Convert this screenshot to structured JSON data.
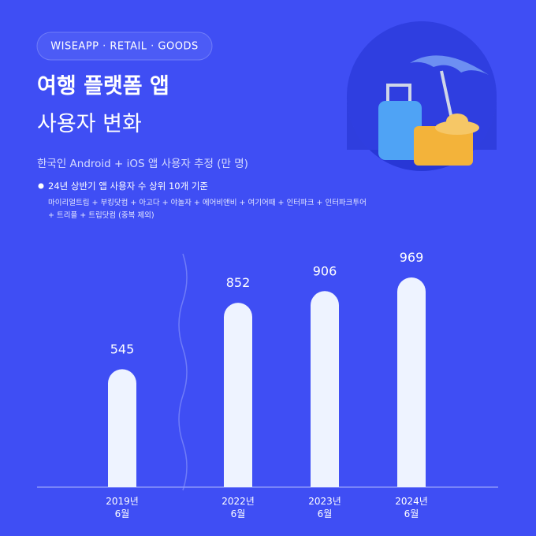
{
  "header": {
    "tag": "WISEAPP · RETAIL · GOODS",
    "title_lines": [
      "여행 플랫폼 앱",
      "사용자 변화"
    ],
    "subtitle": "한국인 Android + iOS 앱 사용자 추정 (만 명)",
    "note": "24년 상반기 앱 사용자 수 상위 10개 기준",
    "note_detail": [
      "마이리얼트립 + 부킹닷컴 + 아고다 + 야놀자 + 에어비앤비 + 여기어때 + 인터파크 + 인터파크투어",
      "+ 트리플 + 트립닷컴 (중복 제외)"
    ]
  },
  "chart_data": {
    "type": "bar",
    "categories": [
      "2019년\n6월",
      "2022년\n6월",
      "2023년\n6월",
      "2024년\n6월"
    ],
    "values": [
      545,
      852,
      906,
      969
    ],
    "color": "#eef3ff"
  }
}
